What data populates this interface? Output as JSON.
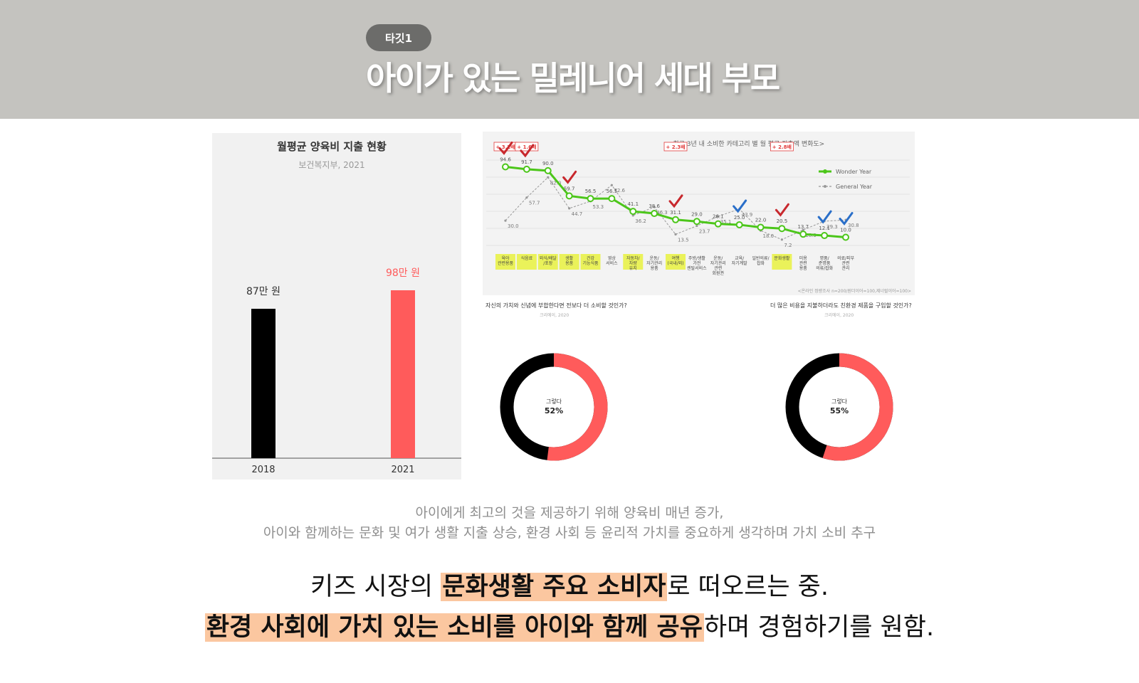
{
  "header": {
    "badge": "타깃1",
    "title": "아이가 있는 밀레니어 세대 부모"
  },
  "left_chart": {
    "title": "월평균 양육비 지출 현황",
    "source": "보건복지부, 2021",
    "categories": [
      "2018",
      "2021"
    ],
    "value_labels": [
      "87만 원",
      "98만 원"
    ],
    "values": [
      87,
      98
    ],
    "unit": "만 원",
    "colors": [
      "#000000",
      "#ff5b5b"
    ]
  },
  "line_chart": {
    "title": "<최근 3년 내 소비한 카테고리 별 월 평균 지출액 변화도>",
    "legend": [
      "Wonder Year",
      "General Year"
    ],
    "series_colors": [
      "#4cc61a",
      "#999999"
    ],
    "wonder_values": [
      94.6,
      91.7,
      90.0,
      59.7,
      56.5,
      56.5,
      41.1,
      38.6,
      31.1,
      29.0,
      26.1,
      25.0,
      22.0,
      20.5,
      13.7,
      12.1,
      10.0
    ],
    "general_values": [
      30.0,
      57.7,
      82.0,
      44.7,
      53.3,
      72.6,
      36.2,
      46.3,
      13.5,
      23.7,
      35.1,
      43.9,
      18.0,
      7.2,
      18.9,
      29.3,
      30.8
    ],
    "badges": [
      "+ 3.2배",
      "+ 1.6배",
      "+ 2.3배",
      "+ 2.8배"
    ],
    "categories": [
      "육아 관련용품",
      "식음료",
      "외식/배달 /포장",
      "생활 용품",
      "건강 기능식품",
      "영상 서비스",
      "자동차/ 차량 유지",
      "운동/ 자기관리 용품",
      "여행 (국내/외)",
      "주방/생활 가전 렌탈서비스",
      "운동/ 자기관리 관련 회원권",
      "교육/ 자기계발",
      "일반의류/ 잡화",
      "문화생활",
      "미용 관련 용품",
      "명품/ 준명품 의류/잡화",
      "의료/피부 관련 관리"
    ],
    "footnote": "<온라인 정량조사 n=200/원더이어=100,제너럴이어=100>"
  },
  "donuts": [
    {
      "question": "자신의 가치와 신념에 부합한다면 전보다 더 소비할 것인가?",
      "source": "크리에이, 2020",
      "label": "그렇다",
      "value_label": "52%",
      "value": 52
    },
    {
      "question": "더 많은 비용을 지불하더라도 친환경 제품을 구입할 것인가?",
      "source": "크리에이, 2020",
      "label": "그렇다",
      "value_label": "55%",
      "value": 55
    }
  ],
  "description": {
    "line1": "아이에게 최고의 것을 제공하기 위해 양육비 매년 증가,",
    "line2": "아이와 함께하는 문화 및 여가 생활 지출 상승, 환경 사회 등 윤리적 가치를 중요하게 생각하며 가치 소비 추구"
  },
  "summary": {
    "l1_pre": "키즈 시장의 ",
    "l1_hl": "문화생활 주요 소비자",
    "l1_post": "로 떠오르는 중.",
    "l2_hl": "환경 사회에 가치 있는 소비를 아이와 함께 공유",
    "l2_post": "하며 경험하기를 원함."
  }
}
